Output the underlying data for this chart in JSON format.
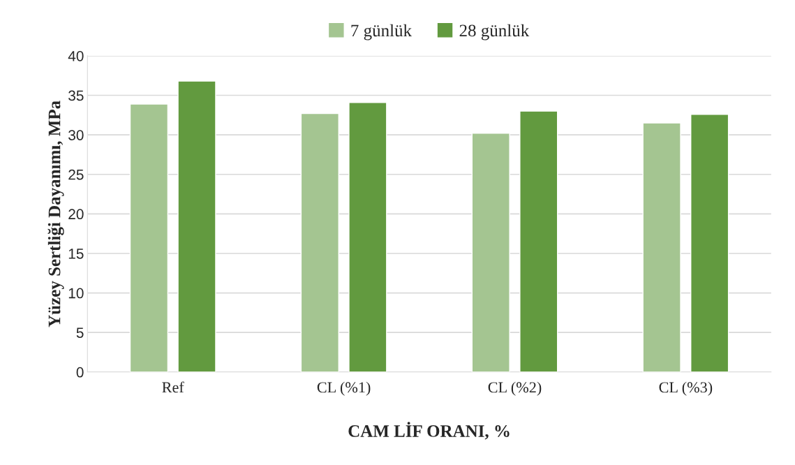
{
  "chart_data": {
    "type": "bar",
    "xlabel": "CAM LİF ORANI, %",
    "ylabel": "Yüzey Sertliği Dayanımı, MPa",
    "categories": [
      "Ref",
      "CL (%1)",
      "CL (%2)",
      "CL (%3)"
    ],
    "series": [
      {
        "name": "7 günlük",
        "color": "#a4c591",
        "values": [
          33.9,
          32.7,
          30.2,
          31.5
        ]
      },
      {
        "name": "28 günlük",
        "color": "#629a3f",
        "values": [
          36.8,
          34.1,
          33.0,
          32.6
        ]
      }
    ],
    "ylim": [
      0,
      40
    ],
    "yticks": [
      0,
      5,
      10,
      15,
      20,
      25,
      30,
      35,
      40
    ],
    "grid": "y",
    "legend": "top"
  }
}
